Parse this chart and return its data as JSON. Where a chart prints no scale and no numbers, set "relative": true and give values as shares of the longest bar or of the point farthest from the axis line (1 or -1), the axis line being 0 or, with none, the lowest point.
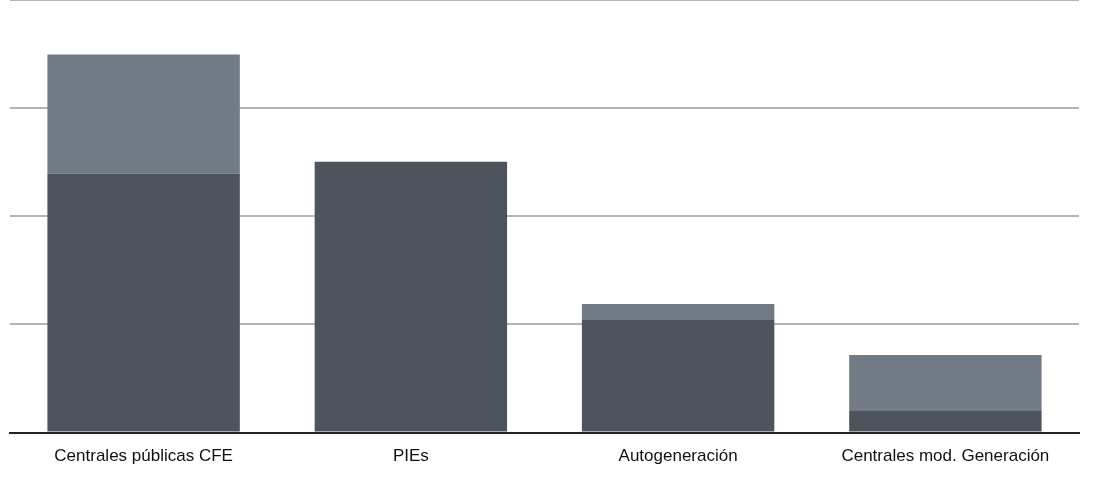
{
  "chart_data": {
    "type": "bar",
    "stacked": true,
    "relative": true,
    "grid": "y",
    "legend": false,
    "categories": [
      "Centrales públicas CFE",
      "PIEs",
      "Autogeneración",
      "Centrales mod. Generación"
    ],
    "series": [
      {
        "color": "#4d545c",
        "values": [
          0.685,
          0.716,
          0.3,
          0.057
        ]
      },
      {
        "color": "#707b85",
        "values": [
          0.315,
          0,
          0.04,
          0.148
        ]
      }
    ]
  }
}
